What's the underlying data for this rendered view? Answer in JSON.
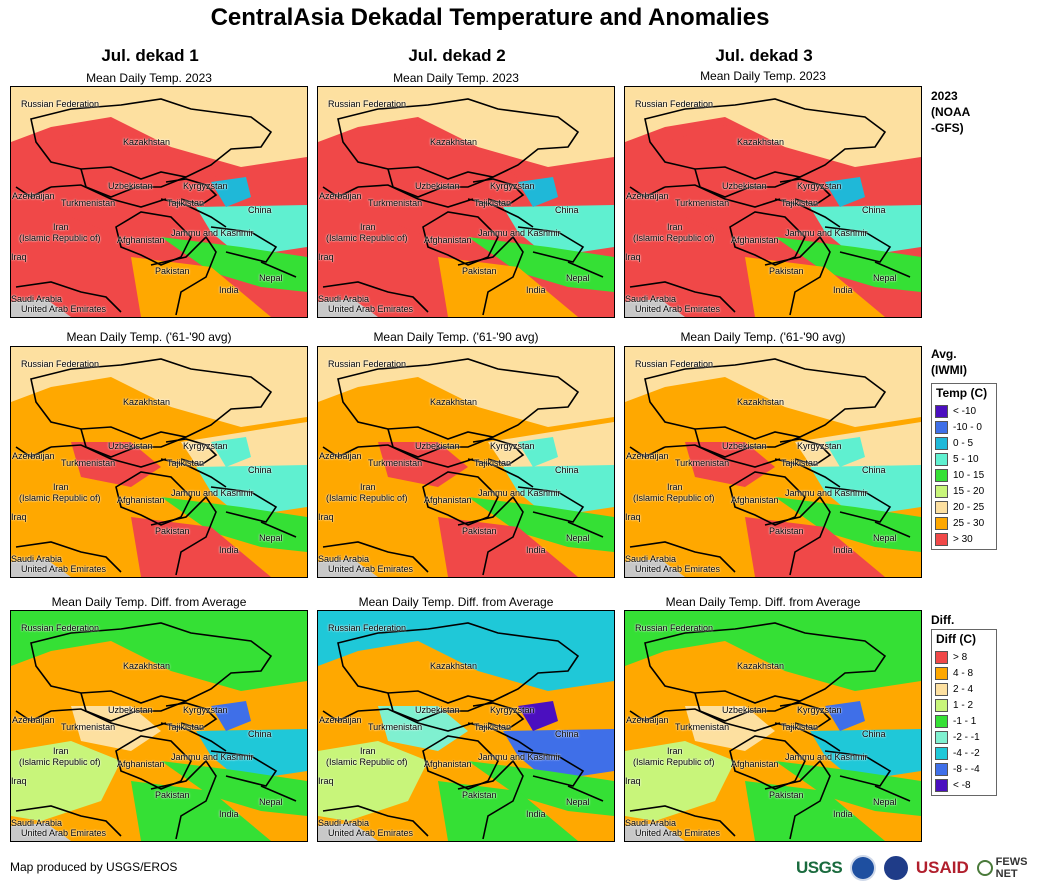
{
  "title": "CentralAsia Dekadal Temperature and Anomalies",
  "columns": [
    "Jul. dekad 1",
    "Jul. dekad 2",
    "Jul. dekad 3"
  ],
  "row_titles": {
    "actual": "Mean Daily Temp. 2023",
    "average": "Mean Daily Temp. ('61-'90 avg)",
    "diff": "Mean Daily Temp. Diff. from Average"
  },
  "row_labels": {
    "actual": [
      "2023",
      "(NOAA",
      "-GFS)"
    ],
    "average": [
      "Avg.",
      "(IWMI)"
    ],
    "diff": [
      "Diff."
    ]
  },
  "map_labels": {
    "russia": "Russian Federation",
    "kazakhstan": "Kazakhstan",
    "uzbekistan": "Uzbekistan",
    "kyrgyzstan": "Kyrgyzstan",
    "azerbaijan": "Azerbaijan",
    "turkmenistan": "Turkmenistan",
    "tajikistan": "Tajikistan",
    "china": "China",
    "iran": "Iran",
    "iran2": "(Islamic Republic of)",
    "afghanistan": "Afghanistan",
    "jammu": "Jammu and Kashmir",
    "iraq": "Iraq",
    "pakistan": "Pakistan",
    "nepal": "Nepal",
    "india": "India",
    "saudi": "Saudi Arabia",
    "uae": "United Arab Emirates"
  },
  "temp_legend": {
    "title": "Temp (C)",
    "items": [
      {
        "label": "< -10",
        "color": "#4b0fbf"
      },
      {
        "label": "-10 - 0",
        "color": "#3f6fe8"
      },
      {
        "label": "0 - 5",
        "color": "#1fb8d8"
      },
      {
        "label": "5 - 10",
        "color": "#5ff0d0"
      },
      {
        "label": "10 - 15",
        "color": "#35e035"
      },
      {
        "label": "15 - 20",
        "color": "#c8f57a"
      },
      {
        "label": "20 - 25",
        "color": "#fde0a0"
      },
      {
        "label": "25 - 30",
        "color": "#ffa800"
      },
      {
        "label": "> 30",
        "color": "#f04848"
      }
    ]
  },
  "diff_legend": {
    "title": "Diff (C)",
    "items": [
      {
        "label": "> 8",
        "color": "#f04848"
      },
      {
        "label": "4 - 8",
        "color": "#ffa800"
      },
      {
        "label": "2 - 4",
        "color": "#fde0a0"
      },
      {
        "label": "1 - 2",
        "color": "#c8f57a"
      },
      {
        "label": "-1 - 1",
        "color": "#35e035"
      },
      {
        "label": "-2 - -1",
        "color": "#7ff0d0"
      },
      {
        "label": "-4 - -2",
        "color": "#1fc8d8"
      },
      {
        "label": "-8 - -4",
        "color": "#3f6fe8"
      },
      {
        "label": "< -8",
        "color": "#4b0fbf"
      }
    ]
  },
  "footer": "Map produced by USGS/EROS",
  "logos": {
    "usgs": "USGS",
    "usaid": "USAID",
    "fews": "FEWS NET"
  }
}
